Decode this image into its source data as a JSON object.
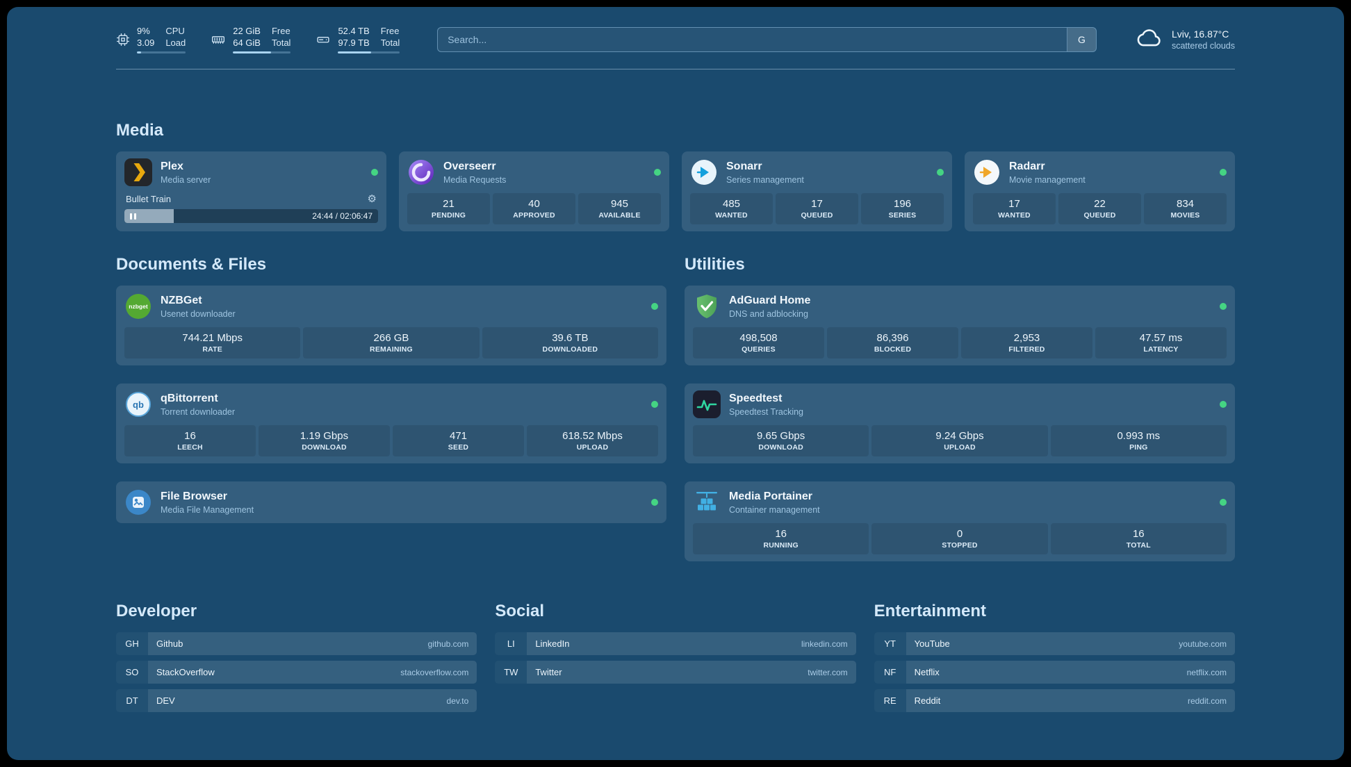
{
  "topbar": {
    "cpu": {
      "line1": "9%",
      "line2": "3.09",
      "label1": "CPU",
      "label2": "Load",
      "percent": 9
    },
    "memory": {
      "line1": "22 GiB",
      "line2": "64 GiB",
      "label1": "Free",
      "label2": "Total",
      "percent": 66
    },
    "disk": {
      "line1": "52.4 TB",
      "line2": "97.9 TB",
      "label1": "Free",
      "label2": "Total",
      "percent": 54
    },
    "search": {
      "placeholder": "Search...",
      "button": "G"
    },
    "weather": {
      "location": "Lviv, 16.87°C",
      "condition": "scattered clouds"
    }
  },
  "icons": {
    "gear": "⚙"
  },
  "sections": {
    "media": "Media",
    "documents": "Documents & Files",
    "utilities": "Utilities",
    "developer": "Developer",
    "social": "Social",
    "entertainment": "Entertainment"
  },
  "services": {
    "plex": {
      "name": "Plex",
      "desc": "Media server",
      "now_playing": "Bullet Train",
      "time": "24:44 / 02:06:47",
      "progress": 19.5
    },
    "overseerr": {
      "name": "Overseerr",
      "desc": "Media Requests",
      "stats": [
        {
          "value": "21",
          "label": "PENDING"
        },
        {
          "value": "40",
          "label": "APPROVED"
        },
        {
          "value": "945",
          "label": "AVAILABLE"
        }
      ]
    },
    "sonarr": {
      "name": "Sonarr",
      "desc": "Series management",
      "stats": [
        {
          "value": "485",
          "label": "WANTED"
        },
        {
          "value": "17",
          "label": "QUEUED"
        },
        {
          "value": "196",
          "label": "SERIES"
        }
      ]
    },
    "radarr": {
      "name": "Radarr",
      "desc": "Movie management",
      "stats": [
        {
          "value": "17",
          "label": "WANTED"
        },
        {
          "value": "22",
          "label": "QUEUED"
        },
        {
          "value": "834",
          "label": "MOVIES"
        }
      ]
    },
    "nzbget": {
      "name": "NZBGet",
      "desc": "Usenet downloader",
      "stats": [
        {
          "value": "744.21 Mbps",
          "label": "RATE"
        },
        {
          "value": "266 GB",
          "label": "REMAINING"
        },
        {
          "value": "39.6 TB",
          "label": "DOWNLOADED"
        }
      ]
    },
    "qbittorrent": {
      "name": "qBittorrent",
      "desc": "Torrent downloader",
      "stats": [
        {
          "value": "16",
          "label": "LEECH"
        },
        {
          "value": "1.19 Gbps",
          "label": "DOWNLOAD"
        },
        {
          "value": "471",
          "label": "SEED"
        },
        {
          "value": "618.52 Mbps",
          "label": "UPLOAD"
        }
      ]
    },
    "filebrowser": {
      "name": "File Browser",
      "desc": "Media File Management"
    },
    "adguard": {
      "name": "AdGuard Home",
      "desc": "DNS and adblocking",
      "stats": [
        {
          "value": "498,508",
          "label": "QUERIES"
        },
        {
          "value": "86,396",
          "label": "BLOCKED"
        },
        {
          "value": "2,953",
          "label": "FILTERED"
        },
        {
          "value": "47.57 ms",
          "label": "LATENCY"
        }
      ]
    },
    "speedtest": {
      "name": "Speedtest",
      "desc": "Speedtest Tracking",
      "stats": [
        {
          "value": "9.65 Gbps",
          "label": "DOWNLOAD"
        },
        {
          "value": "9.24 Gbps",
          "label": "UPLOAD"
        },
        {
          "value": "0.993 ms",
          "label": "PING"
        }
      ]
    },
    "portainer": {
      "name": "Media Portainer",
      "desc": "Container management",
      "stats": [
        {
          "value": "16",
          "label": "RUNNING"
        },
        {
          "value": "0",
          "label": "STOPPED"
        },
        {
          "value": "16",
          "label": "TOTAL"
        }
      ]
    }
  },
  "bookmarks": {
    "developer": [
      {
        "abbr": "GH",
        "name": "Github",
        "url": "github.com"
      },
      {
        "abbr": "SO",
        "name": "StackOverflow",
        "url": "stackoverflow.com"
      },
      {
        "abbr": "DT",
        "name": "DEV",
        "url": "dev.to"
      }
    ],
    "social": [
      {
        "abbr": "LI",
        "name": "LinkedIn",
        "url": "linkedin.com"
      },
      {
        "abbr": "TW",
        "name": "Twitter",
        "url": "twitter.com"
      }
    ],
    "entertainment": [
      {
        "abbr": "YT",
        "name": "YouTube",
        "url": "youtube.com"
      },
      {
        "abbr": "NF",
        "name": "Netflix",
        "url": "netflix.com"
      },
      {
        "abbr": "RE",
        "name": "Reddit",
        "url": "reddit.com"
      }
    ]
  }
}
